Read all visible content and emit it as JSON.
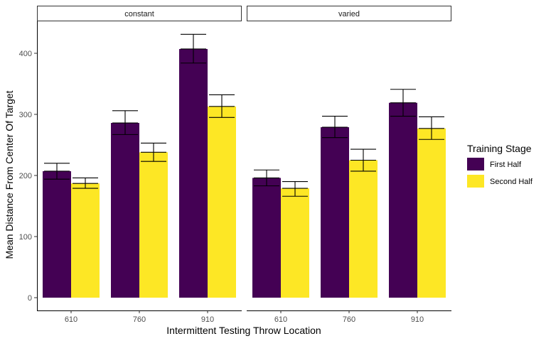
{
  "chart_data": {
    "type": "bar",
    "xlabel": "Intermittent Testing Throw Location",
    "ylabel": "Mean Distance From Center Of Target",
    "ylim": [
      0,
      450
    ],
    "yticks": [
      0,
      100,
      200,
      300,
      400
    ],
    "categories": [
      "610",
      "760",
      "910"
    ],
    "legend": {
      "title": "Training Stage",
      "placement": "right",
      "entries": [
        {
          "name": "First Half",
          "color": "#440154"
        },
        {
          "name": "Second Half",
          "color": "#FDE725"
        }
      ]
    },
    "panels": [
      {
        "title": "constant",
        "series": [
          {
            "name": "First Half",
            "values": [
              207,
              286,
              407
            ],
            "err_low": [
              194,
              267,
              384
            ],
            "err_high": [
              220,
              306,
              431
            ]
          },
          {
            "name": "Second Half",
            "values": [
              187,
              238,
              313
            ],
            "err_low": [
              179,
              223,
              295
            ],
            "err_high": [
              196,
              253,
              332
            ]
          }
        ]
      },
      {
        "title": "varied",
        "series": [
          {
            "name": "First Half",
            "values": [
              196,
              279,
              319
            ],
            "err_low": [
              183,
              262,
              297
            ],
            "err_high": [
              209,
              297,
              341
            ]
          },
          {
            "name": "Second Half",
            "values": [
              179,
              225,
              277
            ],
            "err_low": [
              166,
              207,
              259
            ],
            "err_high": [
              190,
              243,
              296
            ]
          }
        ]
      }
    ]
  }
}
